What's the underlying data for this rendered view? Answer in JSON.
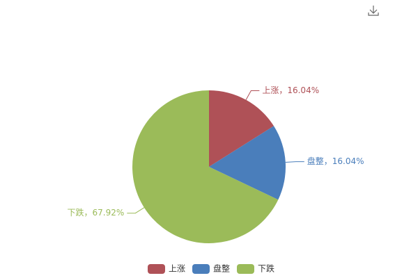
{
  "chart_data": {
    "type": "pie",
    "categories": [
      "上涨",
      "盘整",
      "下跌"
    ],
    "values": [
      16.04,
      16.04,
      67.92
    ],
    "value_labels": [
      "上涨，16.04%",
      "盘整，16.04%",
      "下跌，67.92%"
    ],
    "colors": [
      "#af5157",
      "#4a7ebb",
      "#9bbb59"
    ],
    "legend": "bottom"
  }
}
